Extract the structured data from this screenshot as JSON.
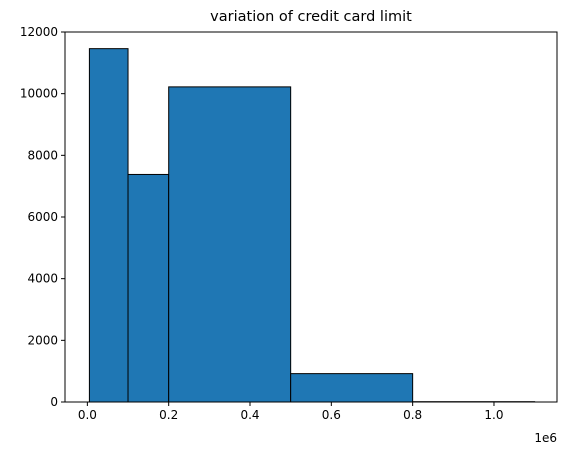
{
  "chart_data": {
    "type": "bar",
    "title": "variation of credit card limit",
    "xlabel": "",
    "ylabel": "",
    "x_scale_label": "1e6",
    "xlim": [
      -0.055,
      1.155
    ],
    "ylim": [
      0,
      12000
    ],
    "x_ticks": [
      {
        "value": 0.0,
        "label": "0.0"
      },
      {
        "value": 0.2,
        "label": "0.2"
      },
      {
        "value": 0.4,
        "label": "0.4"
      },
      {
        "value": 0.6,
        "label": "0.6"
      },
      {
        "value": 0.8,
        "label": "0.8"
      },
      {
        "value": 1.0,
        "label": "1.0"
      }
    ],
    "y_ticks": [
      {
        "value": 0,
        "label": "0"
      },
      {
        "value": 2000,
        "label": "2000"
      },
      {
        "value": 4000,
        "label": "4000"
      },
      {
        "value": 6000,
        "label": "6000"
      },
      {
        "value": 8000,
        "label": "8000"
      },
      {
        "value": 10000,
        "label": "10000"
      },
      {
        "value": 12000,
        "label": "12000"
      }
    ],
    "bins": [
      {
        "start": 0.005,
        "end": 0.1,
        "count": 11460
      },
      {
        "start": 0.1,
        "end": 0.2,
        "count": 7380
      },
      {
        "start": 0.2,
        "end": 0.5,
        "count": 10220
      },
      {
        "start": 0.5,
        "end": 0.8,
        "count": 920
      },
      {
        "start": 0.8,
        "end": 1.1,
        "count": 10
      }
    ],
    "grid": false,
    "legend": "none",
    "bar_color": "#1f77b4",
    "edge_color": "#000000"
  }
}
